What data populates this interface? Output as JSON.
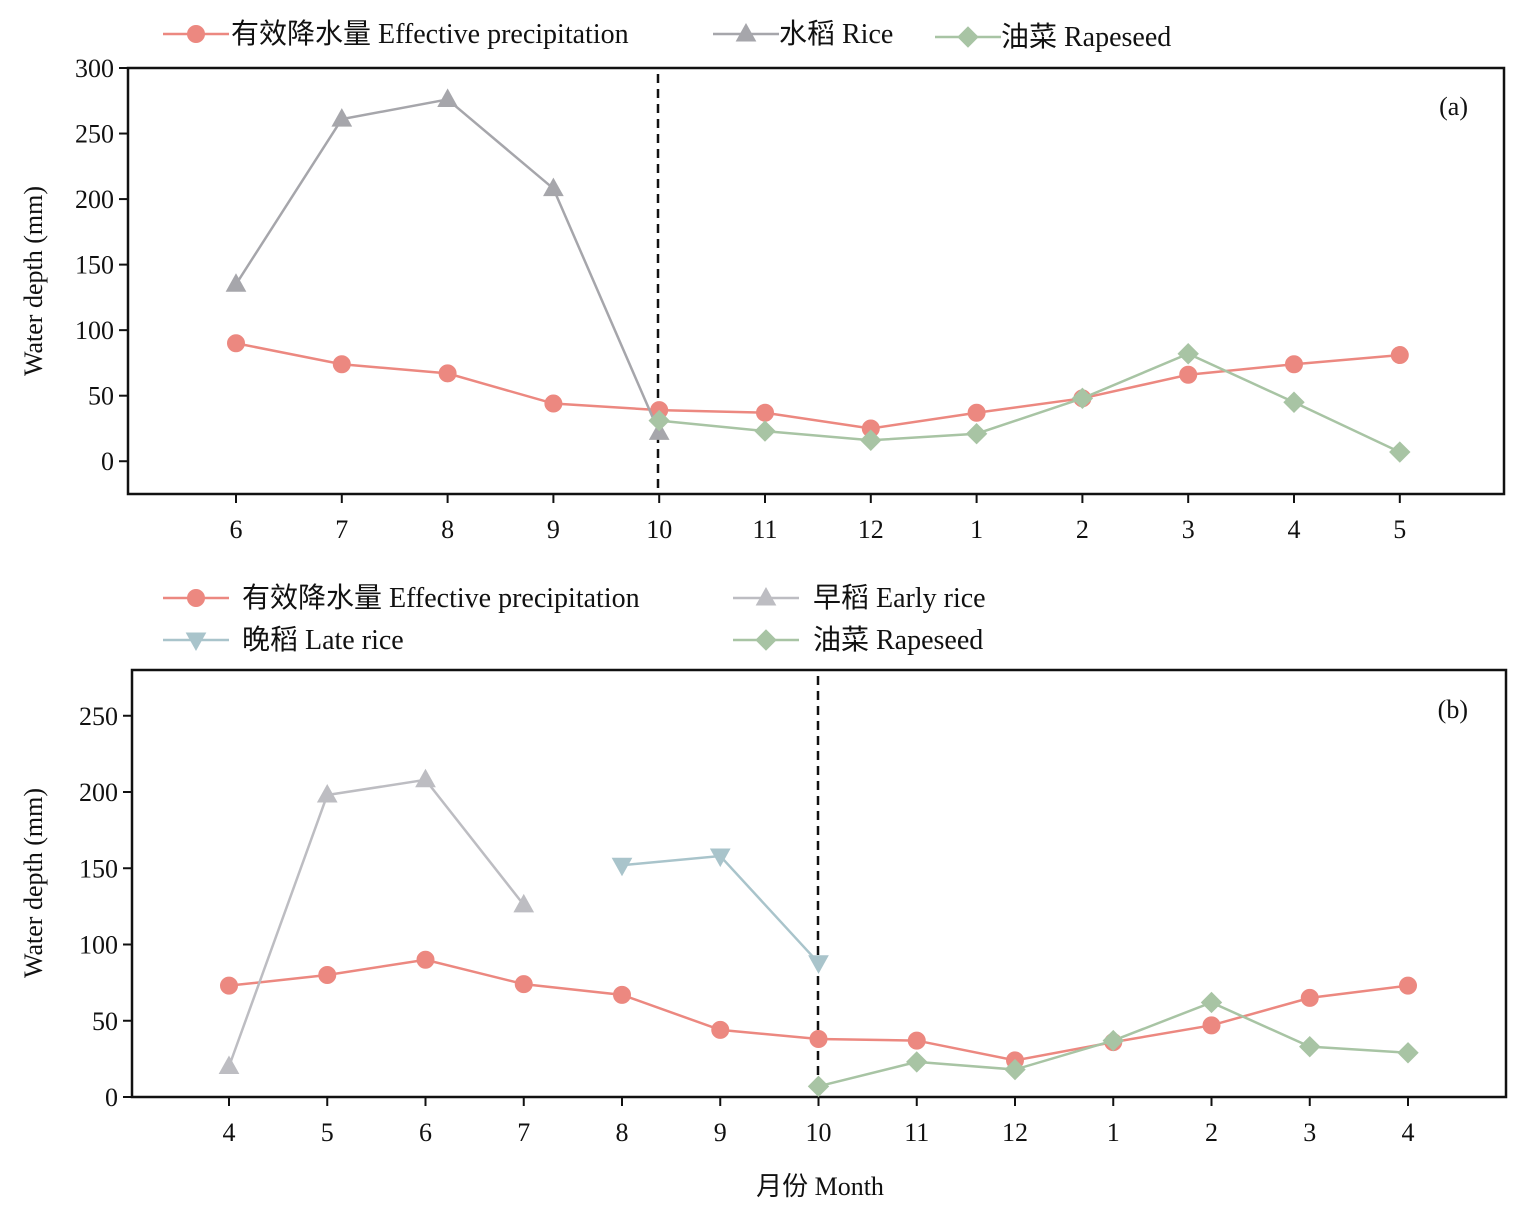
{
  "chart_data": [
    {
      "type": "line",
      "panel_label": "(a)",
      "ylabel": "Water depth (mm)",
      "xlabel": "",
      "categories": [
        "6",
        "7",
        "8",
        "9",
        "10",
        "11",
        "12",
        "1",
        "2",
        "3",
        "4",
        "5"
      ],
      "ylim": [
        -25,
        300
      ],
      "yticks": [
        0,
        50,
        100,
        150,
        200,
        250,
        300
      ],
      "divider_category": "10",
      "legend_position": "top",
      "series": [
        {
          "name": "有效降水量 Effective precipitation",
          "marker": "circle",
          "color": "#ec8880",
          "values": [
            90,
            74,
            67,
            44,
            39,
            37,
            25,
            37,
            48,
            66,
            74,
            81
          ]
        },
        {
          "name": "水稻 Rice",
          "marker": "triangle-up",
          "color": "#a6a6ab",
          "values": [
            135,
            261,
            276,
            208,
            22,
            null,
            null,
            null,
            null,
            null,
            null,
            null
          ]
        },
        {
          "name": "油菜 Rapeseed",
          "marker": "diamond",
          "color": "#a8c4a4",
          "values": [
            null,
            null,
            null,
            null,
            31,
            23,
            16,
            21,
            48,
            82,
            45,
            7
          ]
        }
      ]
    },
    {
      "type": "line",
      "panel_label": "(b)",
      "ylabel": "Water depth (mm)",
      "xlabel": "月份 Month",
      "categories": [
        "4",
        "5",
        "6",
        "7",
        "8",
        "9",
        "10",
        "11",
        "12",
        "1",
        "2",
        "3",
        "4"
      ],
      "ylim": [
        0,
        280
      ],
      "yticks": [
        0,
        50,
        100,
        150,
        200,
        250
      ],
      "divider_category_index": 6,
      "legend_position": "top",
      "series": [
        {
          "name": "有效降水量 Effective precipitation",
          "marker": "circle",
          "color": "#ec8880",
          "values": [
            73,
            80,
            90,
            74,
            67,
            44,
            38,
            37,
            24,
            36,
            47,
            65,
            73
          ]
        },
        {
          "name": "早稻 Early rice",
          "marker": "triangle-up",
          "color": "#bdbdc2",
          "values": [
            20,
            198,
            208,
            126,
            null,
            null,
            null,
            null,
            null,
            null,
            null,
            null,
            null
          ]
        },
        {
          "name": "晚稻 Late rice",
          "marker": "triangle-down",
          "color": "#a9c4cb",
          "values": [
            null,
            null,
            null,
            null,
            152,
            158,
            88,
            null,
            null,
            null,
            null,
            null,
            null
          ]
        },
        {
          "name": "油菜 Rapeseed",
          "marker": "diamond",
          "color": "#a8c4a4",
          "values": [
            null,
            null,
            null,
            null,
            null,
            null,
            7,
            23,
            18,
            37,
            62,
            33,
            29
          ]
        }
      ]
    }
  ]
}
